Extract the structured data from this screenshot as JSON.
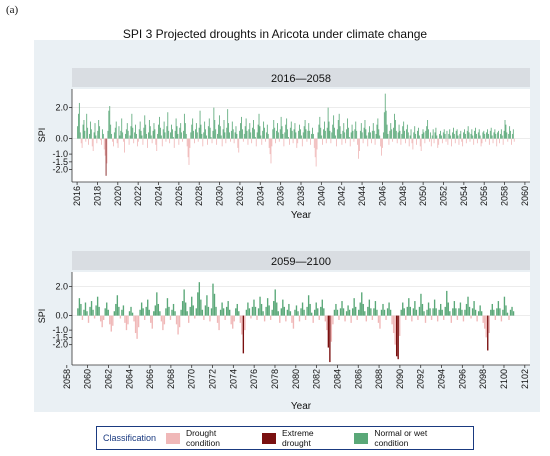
{
  "panel_label": "(a)",
  "title": "SPI 3 Projected droughts in Aricota under climate change",
  "legend": {
    "title": "Classification",
    "items": [
      {
        "label": "Drought condition",
        "color": "#f0b8b8"
      },
      {
        "label": "Extreme drought",
        "color": "#7a1010"
      },
      {
        "label": "Normal or wet condition",
        "color": "#5aa878"
      }
    ]
  },
  "colors": {
    "drought": "#f0b8b8",
    "extreme": "#7a1010",
    "normal": "#5aa878",
    "frame_bg": "#eaf0f4",
    "strip_bg": "#d9dde2"
  },
  "chart_data": [
    {
      "type": "bar",
      "panel_title": "2016—2058",
      "xlabel": "Year",
      "ylabel": "SPI",
      "xlim": [
        2015.5,
        2060.5
      ],
      "ylim": [
        -2.8,
        3.2
      ],
      "x_ticks": [
        "2016",
        "2018",
        "2020",
        "2022",
        "2024",
        "2026",
        "2028",
        "2030",
        "2032",
        "2034",
        "2036",
        "2038",
        "2040",
        "2042",
        "2044",
        "2046",
        "2048",
        "2050",
        "2052",
        "2054",
        "2056",
        "2058",
        "2060"
      ],
      "y_ticks": [
        "2.0",
        "0.0",
        "-1.0",
        "-1.5",
        "-2.0"
      ],
      "y_tick_values": [
        2.0,
        0.0,
        -1.0,
        -1.5,
        -2.0
      ],
      "start_year": 2016,
      "end_year": 2058,
      "values": [
        0.8,
        1.6,
        2.3,
        0.4,
        -0.3,
        -0.6,
        0.9,
        1.2,
        0.5,
        -0.2,
        1.6,
        0.7,
        -0.4,
        0.3,
        1.1,
        0.6,
        -0.5,
        -0.8,
        0.4,
        1.0,
        0.2,
        -0.3,
        0.5,
        1.2,
        0.8,
        -0.1,
        -0.4,
        0.6,
        0.3,
        -0.7,
        -1.1,
        -2.4,
        -1.6,
        0.5,
        1.8,
        2.1,
        0.9,
        0.3,
        -0.2,
        -0.5,
        0.4,
        0.7,
        1.1,
        -0.3,
        -0.6,
        0.8,
        0.2,
        0.5,
        1.3,
        0.4,
        -0.2,
        -0.9,
        0.3,
        0.6,
        1.0,
        0.5,
        -0.4,
        0.2,
        0.8,
        1.6,
        0.7,
        -0.3,
        0.4,
        0.9,
        0.3,
        -0.5,
        -0.2,
        0.6,
        1.1,
        0.5,
        0.2,
        -0.4,
        0.7,
        1.5,
        0.9,
        0.3,
        -0.6,
        0.4,
        1.2,
        0.8,
        0.2,
        -0.3,
        0.5,
        1.0,
        0.6,
        -0.4,
        -0.8,
        0.3,
        0.9,
        1.4,
        0.7,
        0.2,
        -0.5,
        0.6,
        1.1,
        0.4,
        -0.2,
        0.8,
        1.7,
        0.5,
        -0.3,
        0.4,
        0.9,
        0.6,
        0.1,
        -0.6,
        0.5,
        1.3,
        0.8,
        0.3,
        -0.4,
        0.7,
        1.0,
        0.4,
        -0.2,
        0.5,
        1.6,
        1.0,
        0.3,
        -0.5,
        -1.2,
        -1.7,
        -0.6,
        0.4,
        0.9,
        1.3,
        0.5,
        -0.3,
        0.6,
        1.0,
        0.4,
        -0.2,
        0.7,
        1.8,
        0.9,
        0.3,
        -0.5,
        0.4,
        1.1,
        0.6,
        0.2,
        -0.4,
        0.8,
        1.3,
        0.7,
        0.1,
        -0.3,
        0.5,
        2.0,
        1.2,
        0.6,
        -0.4,
        0.3,
        0.9,
        1.5,
        0.8,
        0.2,
        -0.5,
        0.6,
        1.2,
        0.4,
        -0.3,
        0.7,
        1.9,
        1.0,
        0.4,
        -0.2,
        0.5,
        1.1,
        0.6,
        -0.3,
        0.4,
        0.8,
        0.3,
        -0.6,
        -0.9,
        0.5,
        1.0,
        1.4,
        0.6,
        -0.2,
        0.3,
        0.8,
        1.3,
        0.5,
        -0.4,
        0.6,
        1.0,
        0.4,
        -0.3,
        0.7,
        1.2,
        0.6,
        0.1,
        -0.5,
        0.4,
        0.9,
        1.6,
        0.8,
        0.2,
        -0.4,
        0.5,
        1.1,
        0.7,
        -0.2,
        0.4,
        0.9,
        0.3,
        -0.6,
        -1.0,
        -1.6,
        -0.5,
        0.6,
        1.2,
        0.7,
        -0.3,
        0.5,
        1.0,
        0.4,
        -0.2,
        0.6,
        1.4,
        0.8,
        0.3,
        -0.5,
        0.4,
        0.9,
        1.3,
        0.6,
        0.1,
        -0.4,
        0.7,
        1.1,
        0.5,
        -0.3,
        0.6,
        1.0,
        0.4,
        -0.6,
        -0.3,
        0.5,
        0.9,
        0.6,
        0.2,
        -0.5,
        0.4,
        0.8,
        1.2,
        0.6,
        -0.2,
        0.5,
        1.0,
        0.5,
        -0.4,
        0.3,
        0.7,
        0.3,
        -0.6,
        -1.2,
        -1.8,
        -0.7,
        0.4,
        0.9,
        1.4,
        0.7,
        0.2,
        -0.4,
        0.6,
        1.1,
        0.5,
        -0.3,
        0.7,
        2.0,
        1.1,
        0.5,
        -0.3,
        0.4,
        0.9,
        1.5,
        0.7,
        0.2,
        -0.5,
        0.6,
        1.2,
        1.6,
        0.8,
        0.3,
        -0.4,
        0.5,
        1.0,
        0.4,
        -0.3,
        0.6,
        1.3,
        0.7,
        0.1,
        -0.5,
        0.4,
        0.9,
        0.5,
        -0.2,
        0.6,
        1.1,
        0.5,
        -0.4,
        -1.3,
        -0.8,
        0.5,
        1.0,
        0.4,
        -0.3,
        0.7,
        1.2,
        0.6,
        0.2,
        -0.5,
        0.4,
        0.8,
        0.4,
        -0.3,
        0.5,
        1.0,
        0.5,
        -0.4,
        0.3,
        0.9,
        1.3,
        0.6,
        0.2,
        -0.5,
        -1.1,
        -0.6,
        0.4,
        1.7,
        2.9,
        1.8,
        0.9,
        0.3,
        -0.4,
        0.5,
        1.0,
        0.6,
        -0.2,
        0.7,
        1.6,
        1.2,
        0.5,
        -0.3,
        0.4,
        0.9,
        0.5,
        -0.4,
        0.3,
        0.8,
        1.1,
        0.5,
        -0.3,
        0.6,
        0.9,
        0.4,
        -0.5,
        0.2,
        0.6,
        -0.3,
        -0.7,
        0.4,
        0.8,
        0.3,
        -0.4,
        0.5,
        0.7,
        0.2,
        -0.5,
        -0.8,
        0.3,
        0.6,
        0.4,
        -0.3,
        0.5,
        0.8,
        1.2,
        0.6,
        -0.2,
        0.4,
        -0.5,
        0.2,
        0.6,
        -0.3,
        0.4,
        0.7,
        0.2,
        -0.6,
        -0.4,
        0.3,
        0.5,
        0.2,
        -0.3,
        0.4,
        0.6,
        0.3,
        -0.2,
        0.5,
        -0.4,
        0.3,
        0.6,
        0.2,
        -0.5,
        0.4,
        0.7,
        0.3,
        -0.3,
        0.5,
        0.6,
        0.2,
        -0.4,
        0.3,
        0.5,
        -0.2,
        -0.5,
        0.4,
        0.6,
        0.3,
        -0.3,
        0.5,
        0.8,
        0.4,
        -0.2,
        0.3,
        0.6,
        0.2,
        -0.4,
        0.5,
        0.7,
        0.3,
        -0.3,
        0.4,
        0.6,
        0.2,
        -0.5,
        -0.3,
        0.4,
        0.5,
        0.3,
        -0.2,
        0.4,
        0.6,
        0.3,
        -0.4,
        0.5,
        0.7,
        0.2,
        -0.3,
        0.4,
        0.6,
        0.3,
        -0.5,
        0.4,
        0.5,
        -0.3,
        0.3,
        0.6,
        0.2,
        -0.4,
        0.5,
        1.2,
        0.9,
        0.4,
        -0.2,
        0.3,
        0.8,
        0.5,
        -0.4,
        0.3,
        0.6,
        -0.2
      ]
    },
    {
      "type": "bar",
      "panel_title": "2059—2100",
      "xlabel": "Year",
      "ylabel": "SPI",
      "xlim": [
        2058.5,
        2102.5
      ],
      "ylim": [
        -3.4,
        3.0
      ],
      "x_ticks": [
        "2058",
        "2060",
        "2062",
        "2064",
        "2066",
        "2068",
        "2070",
        "2072",
        "2074",
        "2076",
        "2078",
        "2080",
        "2082",
        "2084",
        "2086",
        "2088",
        "2090",
        "2092",
        "2094",
        "2096",
        "2098",
        "2100",
        "2102"
      ],
      "y_ticks": [
        "2.0",
        "0.0",
        "-1.0",
        "-1.5",
        "-2.0"
      ],
      "y_tick_values": [
        2.0,
        0.0,
        -1.0,
        -1.5,
        -2.0
      ],
      "start_year": 2059,
      "end_year": 2100,
      "values": [
        0.5,
        1.2,
        0.8,
        -0.3,
        0.4,
        0.9,
        0.3,
        -0.5,
        0.6,
        1.0,
        0.4,
        -0.2,
        0.7,
        1.3,
        0.6,
        -0.4,
        -0.8,
        -0.3,
        0.5,
        0.9,
        0.4,
        -0.6,
        -1.1,
        -0.7,
        0.3,
        0.8,
        1.4,
        0.6,
        -0.2,
        0.4,
        0.7,
        -0.5,
        -1.0,
        -0.6,
        0.3,
        0.6,
        0.2,
        -0.4,
        -1.2,
        -1.6,
        -0.8,
        0.4,
        0.9,
        0.5,
        -0.3,
        0.6,
        1.1,
        0.4,
        -0.5,
        -0.9,
        0.3,
        0.7,
        1.6,
        0.8,
        0.3,
        -0.4,
        -1.0,
        -0.6,
        0.5,
        1.2,
        0.6,
        -0.3,
        0.4,
        0.8,
        0.3,
        -0.6,
        -1.3,
        -0.8,
        0.4,
        1.0,
        1.8,
        0.9,
        0.3,
        -0.5,
        0.6,
        1.3,
        0.7,
        -0.2,
        0.5,
        1.6,
        2.3,
        1.1,
        0.4,
        -0.3,
        0.7,
        1.4,
        0.6,
        -0.4,
        0.5,
        2.2,
        1.5,
        0.6,
        -0.5,
        -1.0,
        0.4,
        0.9,
        0.5,
        -0.3,
        0.6,
        1.0,
        0.4,
        -0.6,
        -0.9,
        -0.4,
        0.5,
        0.8,
        0.3,
        -0.5,
        -1.3,
        -2.6,
        -1.0,
        0.4,
        0.9,
        0.5,
        -0.2,
        0.6,
        1.1,
        0.6,
        -0.3,
        0.5,
        1.3,
        0.8,
        0.3,
        -0.4,
        0.6,
        1.2,
        0.7,
        -0.3,
        0.4,
        1.0,
        1.8,
        0.9,
        0.3,
        -0.5,
        0.5,
        1.1,
        0.6,
        -0.4,
        0.4,
        0.8,
        0.3,
        -0.5,
        -0.9,
        0.4,
        0.7,
        0.3,
        -0.4,
        0.5,
        0.9,
        0.4,
        -0.3,
        0.6,
        1.4,
        0.8,
        0.2,
        -0.5,
        0.4,
        0.9,
        0.5,
        -0.3,
        0.6,
        1.1,
        0.5,
        -0.4,
        -1.0,
        -2.2,
        -3.2,
        -1.8,
        -0.6,
        0.4,
        0.8,
        0.4,
        -0.3,
        0.5,
        1.0,
        0.5,
        -0.4,
        0.3,
        0.7,
        0.4,
        -0.5,
        0.5,
        1.2,
        0.6,
        -0.3,
        0.4,
        0.9,
        1.6,
        0.8,
        0.3,
        -0.4,
        0.6,
        1.1,
        0.5,
        -0.3,
        0.5,
        1.0,
        0.4,
        -0.5,
        -0.9,
        0.4,
        0.8,
        0.4,
        -0.3,
        0.5,
        0.9,
        0.4,
        -0.6,
        -1.2,
        -2.0,
        -2.8,
        -3.0,
        -1.4,
        0.4,
        0.9,
        0.5,
        -0.3,
        0.6,
        1.2,
        0.6,
        -0.4,
        0.5,
        1.0,
        0.4,
        -0.3,
        0.6,
        1.5,
        0.8,
        0.3,
        -0.5,
        0.4,
        0.9,
        0.5,
        -0.3,
        0.5,
        1.1,
        0.5,
        -0.4,
        0.4,
        0.8,
        0.4,
        -0.3,
        0.6,
        1.7,
        0.9,
        0.3,
        -0.5,
        0.5,
        1.0,
        0.5,
        -0.3,
        0.5,
        0.9,
        0.4,
        -0.4,
        0.4,
        0.8,
        1.3,
        0.6,
        -0.2,
        0.5,
        1.0,
        0.4,
        -0.4,
        0.3,
        0.7,
        0.3,
        -0.5,
        -0.9,
        -1.5,
        -2.4,
        -1.2,
        0.4,
        0.8,
        0.4,
        -0.3,
        0.5,
        1.0,
        0.5,
        -0.4,
        0.4,
        1.3,
        0.7,
        0.2,
        -0.3,
        0.4,
        0.6,
        0.3
      ]
    }
  ]
}
